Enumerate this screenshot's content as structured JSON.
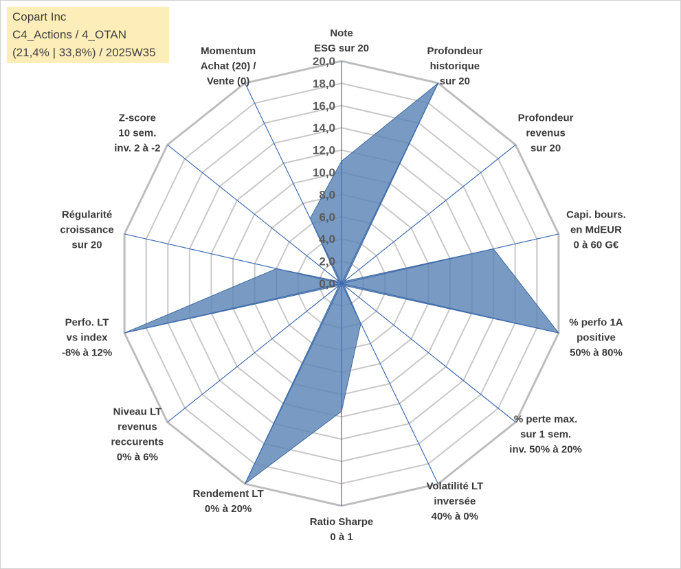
{
  "header": {
    "title_lines": [
      "Copart Inc",
      "C4_Actions / 4_OTAN",
      "(21,4% | 33,8%) / 2025W35"
    ]
  },
  "chart_data": {
    "type": "radar",
    "rmax": 20,
    "tick_step": 2,
    "tick_labels": [
      "0,0",
      "2,0",
      "4,0",
      "6,0",
      "8,0",
      "10,0",
      "12,0",
      "14,0",
      "16,0",
      "18,0",
      "20,0"
    ],
    "grid": true,
    "legend": "none",
    "series_color": "#5b84b5",
    "axes": [
      {
        "label": [
          "Note",
          "ESG sur 20"
        ],
        "value": 11.0
      },
      {
        "label": [
          "Profondeur",
          "historique",
          "sur 20"
        ],
        "value": 20.0
      },
      {
        "label": [
          "Profondeur",
          "revenus",
          "sur 20"
        ],
        "value": 0.3
      },
      {
        "label": [
          "Capi. bours.",
          "en MdEUR",
          "0 à 60 G€"
        ],
        "value": 14.0
      },
      {
        "label": [
          "% perfo 1A",
          "positive",
          "50% à 80%"
        ],
        "value": 20.0
      },
      {
        "label": [
          "% perte max.",
          "sur 1 sem.",
          "inv. 50% à 20%"
        ],
        "value": 0.3
      },
      {
        "label": [
          "Volatilité LT",
          "inversée",
          "40% à 0%"
        ],
        "value": 4.0
      },
      {
        "label": [
          "Ratio Sharpe",
          "0 à 1"
        ],
        "value": 11.5
      },
      {
        "label": [
          "Rendement LT",
          "0% à 20%"
        ],
        "value": 20.0
      },
      {
        "label": [
          "Niveau LT",
          "revenus",
          "reccurents",
          "0% à 6%"
        ],
        "value": 0.3
      },
      {
        "label": [
          "Perfo. LT",
          "vs index",
          "-8% à 12%"
        ],
        "value": 20.0
      },
      {
        "label": [
          "Régularité",
          "croissance",
          "sur 20"
        ],
        "value": 6.0
      },
      {
        "label": [
          "Z-score",
          "10 sem.",
          "inv. 2 à -2"
        ],
        "value": 0.3
      },
      {
        "label": [
          "Momentum",
          "Achat (20) /",
          "Vente (0)"
        ],
        "value": 6.5
      }
    ]
  }
}
